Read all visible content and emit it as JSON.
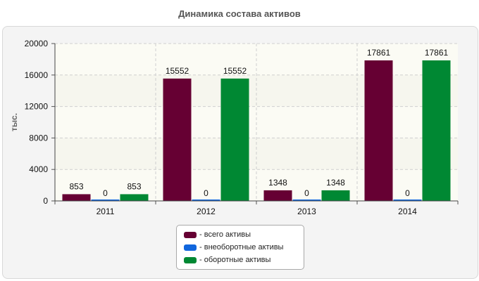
{
  "chart_data": {
    "type": "bar",
    "title": "Динамика состава активов",
    "ylabel": "тыс.",
    "xlabel": "",
    "categories": [
      "2011",
      "2012",
      "2013",
      "2014"
    ],
    "ylim": [
      0,
      20000
    ],
    "yticks": [
      0,
      4000,
      8000,
      12000,
      16000,
      20000
    ],
    "grid": true,
    "series": [
      {
        "name": "всего активы",
        "legend_label": "- всего активы",
        "color": "#660033",
        "values": [
          853,
          15552,
          1348,
          17861
        ]
      },
      {
        "name": "внеоборотные активы",
        "legend_label": "- внеоборотные активы",
        "color": "#1166dd",
        "values": [
          0,
          0,
          0,
          0
        ]
      },
      {
        "name": "оборотные активы",
        "legend_label": "- оборотные активы",
        "color": "#008833",
        "values": [
          853,
          15552,
          1348,
          17861
        ]
      }
    ],
    "legend_position": "bottom-center"
  }
}
